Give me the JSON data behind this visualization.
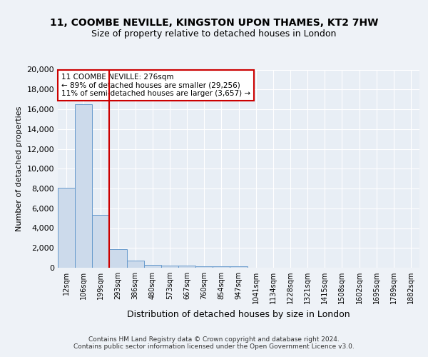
{
  "title1": "11, COOMBE NEVILLE, KINGSTON UPON THAMES, KT2 7HW",
  "title2": "Size of property relative to detached houses in London",
  "xlabel": "Distribution of detached houses by size in London",
  "ylabel": "Number of detached properties",
  "categories": [
    "12sqm",
    "106sqm",
    "199sqm",
    "293sqm",
    "386sqm",
    "480sqm",
    "573sqm",
    "667sqm",
    "760sqm",
    "854sqm",
    "947sqm",
    "1041sqm",
    "1134sqm",
    "1228sqm",
    "1321sqm",
    "1415sqm",
    "1508sqm",
    "1602sqm",
    "1695sqm",
    "1789sqm",
    "1882sqm"
  ],
  "values": [
    8100,
    16500,
    5300,
    1850,
    700,
    300,
    230,
    200,
    175,
    160,
    130,
    0,
    0,
    0,
    0,
    0,
    0,
    0,
    0,
    0,
    0
  ],
  "bar_color": "#ccdaeb",
  "bar_edge_color": "#6699cc",
  "vline_color": "#cc0000",
  "annotation_text": "11 COOMBE NEVILLE: 276sqm\n← 89% of detached houses are smaller (29,256)\n11% of semi-detached houses are larger (3,657) →",
  "annotation_box_facecolor": "#ffffff",
  "annotation_box_edgecolor": "#cc0000",
  "ylim": [
    0,
    20000
  ],
  "yticks": [
    0,
    2000,
    4000,
    6000,
    8000,
    10000,
    12000,
    14000,
    16000,
    18000,
    20000
  ],
  "footer": "Contains HM Land Registry data © Crown copyright and database right 2024.\nContains public sector information licensed under the Open Government Licence v3.0.",
  "bg_color": "#eef2f7",
  "plot_bg_color": "#e8eef5",
  "grid_color": "#ffffff",
  "title1_fontsize": 10,
  "title2_fontsize": 9,
  "ylabel_fontsize": 8,
  "xlabel_fontsize": 9,
  "tick_fontsize": 7,
  "ytick_fontsize": 8,
  "footer_fontsize": 6.5
}
